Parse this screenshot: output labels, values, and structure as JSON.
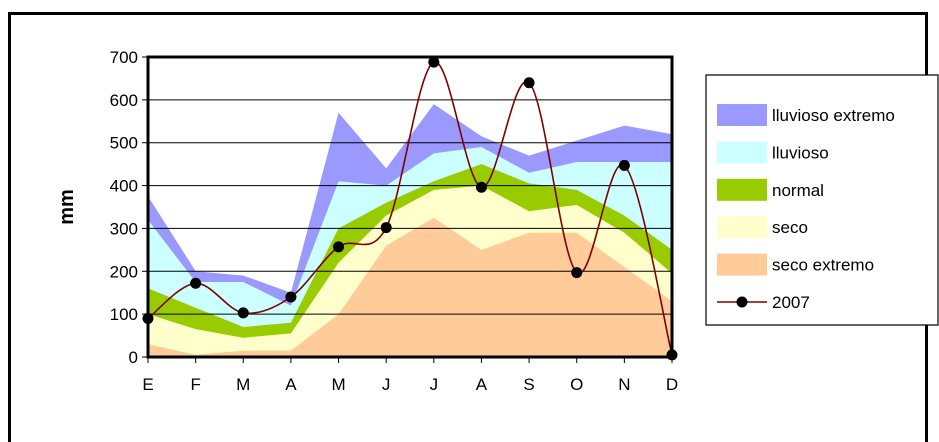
{
  "chart_data": {
    "type": "area",
    "ylabel": "mm",
    "xlabel": "",
    "title": "",
    "ylim": [
      0,
      700
    ],
    "yticks": [
      0,
      100,
      200,
      300,
      400,
      500,
      600,
      700
    ],
    "grid": "horizontal",
    "legend_position": "right",
    "categories": [
      "E",
      "F",
      "M",
      "A",
      "M",
      "J",
      "J",
      "A",
      "S",
      "O",
      "N",
      "D"
    ],
    "bands": [
      {
        "name": "lluvioso extremo",
        "color": "#9999ff",
        "values": [
          375,
          200,
          190,
          150,
          570,
          440,
          590,
          515,
          470,
          505,
          540,
          520
        ]
      },
      {
        "name": "lluvioso",
        "color": "#ccffff",
        "values": [
          320,
          175,
          175,
          120,
          410,
          400,
          475,
          490,
          430,
          455,
          455,
          455
        ]
      },
      {
        "name": "normal",
        "color": "#99cc00",
        "values": [
          160,
          115,
          70,
          80,
          300,
          360,
          410,
          450,
          405,
          390,
          330,
          250
        ]
      },
      {
        "name": "seco",
        "color": "#ffffcc",
        "values": [
          100,
          65,
          45,
          55,
          220,
          330,
          390,
          400,
          340,
          355,
          290,
          195
        ]
      },
      {
        "name": "seco extremo",
        "color": "#ffcc99",
        "values": [
          30,
          5,
          15,
          15,
          100,
          260,
          325,
          250,
          290,
          290,
          210,
          130
        ]
      }
    ],
    "line_series": {
      "name": "2007",
      "color": "#800000",
      "marker_color": "#000000",
      "values": [
        90,
        172,
        103,
        140,
        257,
        302,
        688,
        396,
        640,
        197,
        447,
        5
      ]
    }
  }
}
